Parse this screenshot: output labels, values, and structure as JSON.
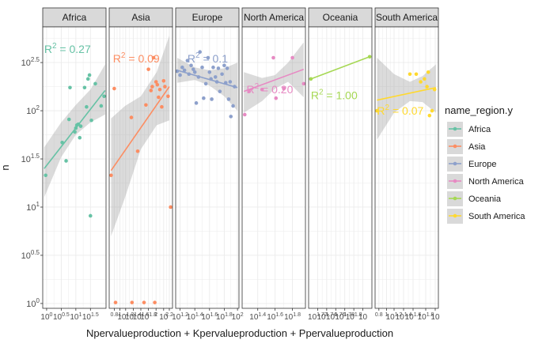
{
  "chart_data": {
    "type": "scatter",
    "subtype": "faceted scatter with linear fit and confidence band",
    "xlabel": "Npervalueproduction + Kpervalueproduction + Ppervalueproduction",
    "ylabel": "n",
    "x_scale": "log10",
    "y_scale": "log10",
    "y_ticks": [
      {
        "label": "10^0",
        "base": "10",
        "exp": "0",
        "value": 1
      },
      {
        "label": "10^0.5",
        "base": "10",
        "exp": "0.5",
        "value": 3.162
      },
      {
        "label": "10^1",
        "base": "10",
        "exp": "1",
        "value": 10
      },
      {
        "label": "10^1.5",
        "base": "10",
        "exp": "1.5",
        "value": 31.62
      },
      {
        "label": "10^2",
        "base": "10",
        "exp": "2",
        "value": 100
      },
      {
        "label": "10^2.5",
        "base": "10",
        "exp": "2.5",
        "value": 316.2
      }
    ],
    "ylim_log10": [
      -0.05,
      2.87
    ],
    "legend": {
      "title": "name_region.y",
      "position": "right",
      "entries": [
        {
          "name": "Africa",
          "color": "#66c2a5"
        },
        {
          "name": "Asia",
          "color": "#fc8d62"
        },
        {
          "name": "Europe",
          "color": "#8da0cb"
        },
        {
          "name": "North America",
          "color": "#e78ac3"
        },
        {
          "name": "Oceania",
          "color": "#a6d854"
        },
        {
          "name": "South America",
          "color": "#ffd92f"
        }
      ]
    },
    "facets": [
      {
        "name": "Africa",
        "color": "#66c2a5",
        "xlim_log10": [
          0.32,
          1.62
        ],
        "x_ticks": [
          {
            "base": "10",
            "exp": "0",
            "pos": 0.4
          },
          {
            "base": "10",
            "exp": "0.5",
            "pos": 0.7
          },
          {
            "base": "10",
            "exp": "1",
            "pos": 1.0
          },
          {
            "base": "10",
            "exp": "1.5",
            "pos": 1.3
          }
        ],
        "r2_base": "R",
        "r2_exp": "2",
        "r2_value": " = 0.27",
        "r2_pos": [
          0.35,
          2.6
        ],
        "fit": {
          "x0": 0.35,
          "y0": 1.4,
          "x1": 1.6,
          "y1": 2.21
        },
        "band": {
          "x": [
            0.35,
            0.7,
            1.0,
            1.3,
            1.6
          ],
          "upper": [
            1.62,
            1.88,
            2.06,
            2.22,
            2.48
          ],
          "lower": [
            1.1,
            1.52,
            1.75,
            1.88,
            1.96
          ]
        },
        "points": [
          [
            0.38,
            1.33
          ],
          [
            0.72,
            1.67
          ],
          [
            0.8,
            1.48
          ],
          [
            0.86,
            1.91
          ],
          [
            0.88,
            2.24
          ],
          [
            0.98,
            1.78
          ],
          [
            1.0,
            1.82
          ],
          [
            1.02,
            1.85
          ],
          [
            1.05,
            1.86
          ],
          [
            1.08,
            1.72
          ],
          [
            1.1,
            1.84
          ],
          [
            1.18,
            2.24
          ],
          [
            1.22,
            2.04
          ],
          [
            1.25,
            2.33
          ],
          [
            1.28,
            2.37
          ],
          [
            1.3,
            0.91
          ],
          [
            1.32,
            1.9
          ],
          [
            1.4,
            2.28
          ],
          [
            1.52,
            2.05
          ],
          [
            1.58,
            2.15
          ]
        ]
      },
      {
        "name": "Asia",
        "color": "#fc8d62",
        "xlim_log10": [
          0.0,
          1.0
        ],
        "x_ticks": [
          {
            "base": "",
            "exp": "0.8",
            "pos": 0.08
          },
          {
            "base": "",
            "exp": "1",
            "pos": 0.17
          },
          {
            "base": "10",
            "exp": "1.2",
            "pos": 0.26
          },
          {
            "base": "10",
            "exp": "1.4",
            "pos": 0.38
          },
          {
            "base": "10",
            "exp": "1.6",
            "pos": 0.5
          },
          {
            "base": "10",
            "exp": "1.8",
            "pos": 0.62
          },
          {
            "base": "",
            "exp": "2",
            "pos": 0.74
          },
          {
            "base": "10",
            "exp": "",
            "pos": 0.86
          },
          {
            "base": "",
            "exp": "2.2",
            "pos": 0.95
          }
        ],
        "r2_base": "R",
        "r2_exp": "2",
        "r2_value": " = 0.09",
        "r2_pos": [
          0.06,
          2.5
        ],
        "fit": {
          "x0": 0.03,
          "y0": 1.38,
          "x1": 0.95,
          "y1": 2.25
        },
        "band": {
          "x": [
            0.03,
            0.25,
            0.5,
            0.75,
            0.95
          ],
          "upper": [
            1.92,
            2.05,
            2.15,
            2.4,
            2.78
          ],
          "lower": [
            0.7,
            1.1,
            1.6,
            1.85,
            1.9
          ]
        },
        "points": [
          [
            0.03,
            1.33
          ],
          [
            0.08,
            2.23
          ],
          [
            0.1,
            0.01
          ],
          [
            0.35,
            1.93
          ],
          [
            0.36,
            0.01
          ],
          [
            0.45,
            1.58
          ],
          [
            0.55,
            0.01
          ],
          [
            0.58,
            2.06
          ],
          [
            0.62,
            2.43
          ],
          [
            0.66,
            2.21
          ],
          [
            0.68,
            2.25
          ],
          [
            0.7,
            2.55
          ],
          [
            0.72,
            0.01
          ],
          [
            0.74,
            2.3
          ],
          [
            0.76,
            2.27
          ],
          [
            0.78,
            2.14
          ],
          [
            0.8,
            2.22
          ],
          [
            0.83,
            2.04
          ],
          [
            0.86,
            2.31
          ],
          [
            0.88,
            2.25
          ],
          [
            0.93,
            2.15
          ],
          [
            0.97,
            1.0
          ]
        ]
      },
      {
        "name": "Europe",
        "color": "#8da0cb",
        "xlim_log10": [
          1.14,
          2.0
        ],
        "x_ticks": [
          {
            "base": "10",
            "exp": "1.2",
            "pos": 1.2
          },
          {
            "base": "10",
            "exp": "1.4",
            "pos": 1.4
          },
          {
            "base": "10",
            "exp": "1.6",
            "pos": 1.6
          },
          {
            "base": "10",
            "exp": "1.8",
            "pos": 1.8
          },
          {
            "base": "10",
            "exp": "2",
            "pos": 1.98
          }
        ],
        "r2_base": "R",
        "r2_exp": "2",
        "r2_value": " = 0.1",
        "r2_pos": [
          1.3,
          2.5
        ],
        "fit": {
          "x0": 1.16,
          "y0": 2.42,
          "x1": 1.98,
          "y1": 2.24
        },
        "band": {
          "x": [
            1.16,
            1.4,
            1.6,
            1.8,
            1.98
          ],
          "upper": [
            2.55,
            2.45,
            2.42,
            2.44,
            2.5
          ],
          "lower": [
            2.29,
            2.32,
            2.26,
            2.15,
            2.0
          ]
        },
        "points": [
          [
            1.16,
            2.41
          ],
          [
            1.2,
            2.37
          ],
          [
            1.23,
            2.45
          ],
          [
            1.26,
            2.42
          ],
          [
            1.3,
            2.52
          ],
          [
            1.32,
            2.38
          ],
          [
            1.35,
            2.47
          ],
          [
            1.38,
            2.43
          ],
          [
            1.4,
            2.4
          ],
          [
            1.42,
            2.08
          ],
          [
            1.45,
            2.35
          ],
          [
            1.47,
            2.61
          ],
          [
            1.5,
            2.45
          ],
          [
            1.52,
            2.13
          ],
          [
            1.55,
            2.28
          ],
          [
            1.58,
            2.55
          ],
          [
            1.6,
            2.4
          ],
          [
            1.62,
            2.33
          ],
          [
            1.63,
            2.12
          ],
          [
            1.65,
            2.45
          ],
          [
            1.68,
            2.35
          ],
          [
            1.7,
            2.3
          ],
          [
            1.72,
            2.44
          ],
          [
            1.74,
            2.2
          ],
          [
            1.77,
            2.38
          ],
          [
            1.8,
            2.47
          ],
          [
            1.82,
            2.29
          ],
          [
            1.84,
            2.44
          ],
          [
            1.86,
            2.12
          ],
          [
            1.88,
            2.3
          ],
          [
            1.89,
            1.94
          ],
          [
            1.92,
            2.05
          ],
          [
            1.94,
            2.25
          ]
        ]
      },
      {
        "name": "North America",
        "color": "#e78ac3",
        "xlim_log10": [
          1.22,
          1.95
        ],
        "x_ticks": [
          {
            "base": "10",
            "exp": "1.4",
            "pos": 1.4
          },
          {
            "base": "10",
            "exp": "1.6",
            "pos": 1.6
          },
          {
            "base": "10",
            "exp": "1.8",
            "pos": 1.8
          }
        ],
        "r2_base": "R",
        "r2_exp": "2",
        "r2_value": " = 0.20",
        "r2_pos": [
          1.27,
          2.18
        ],
        "fit": {
          "x0": 1.24,
          "y0": 2.2,
          "x1": 1.93,
          "y1": 2.43
        },
        "band": {
          "x": [
            1.24,
            1.45,
            1.6,
            1.75,
            1.93
          ],
          "upper": [
            2.4,
            2.34,
            2.37,
            2.5,
            2.71
          ],
          "lower": [
            1.98,
            2.1,
            2.23,
            2.3,
            2.14
          ]
        },
        "points": [
          [
            1.25,
            1.96
          ],
          [
            1.3,
            2.2
          ],
          [
            1.45,
            2.22
          ],
          [
            1.58,
            2.55
          ],
          [
            1.61,
            2.13
          ],
          [
            1.7,
            2.23
          ],
          [
            1.8,
            2.55
          ],
          [
            1.93,
            2.28
          ]
        ]
      },
      {
        "name": "Oceania",
        "color": "#a6d854",
        "xlim_log10": [
          1.68,
          1.82
        ],
        "x_ticks": [
          {
            "base": "10",
            "exp": "1.72",
            "pos": 1.7
          },
          {
            "base": "10",
            "exp": "1.74",
            "pos": 1.72
          },
          {
            "base": "10",
            "exp": "1.76",
            "pos": 1.74
          },
          {
            "base": "10",
            "exp": "1.78",
            "pos": 1.76
          },
          {
            "base": "10",
            "exp": "1.8",
            "pos": 1.78
          },
          {
            "base": "10",
            "exp": "",
            "pos": 1.8
          }
        ],
        "r2_base": "R",
        "r2_exp": "2",
        "r2_value": " = 1.00",
        "r2_pos": [
          1.685,
          2.12
        ],
        "fit": {
          "x0": 1.685,
          "y0": 2.33,
          "x1": 1.815,
          "y1": 2.56
        },
        "band": {
          "x": [
            1.685,
            1.815
          ],
          "upper": [
            2.33,
            2.56
          ],
          "lower": [
            2.33,
            2.56
          ]
        },
        "points": [
          [
            1.685,
            2.33
          ],
          [
            1.815,
            2.56
          ]
        ]
      },
      {
        "name": "South America",
        "color": "#ffd92f",
        "xlim_log10": [
          0.9,
          1.9
        ],
        "x_ticks": [
          {
            "base": "",
            "exp": "0.8",
            "pos": 0.96
          },
          {
            "base": "",
            "exp": "1",
            "pos": 1.08
          },
          {
            "base": "10",
            "exp": "1.2",
            "pos": 1.2
          },
          {
            "base": "10",
            "exp": "1.4",
            "pos": 1.35
          },
          {
            "base": "10",
            "exp": "1.6",
            "pos": 1.5
          },
          {
            "base": "10",
            "exp": "1.8",
            "pos": 1.7
          },
          {
            "base": "10",
            "exp": "",
            "pos": 1.85
          }
        ],
        "r2_base": "R",
        "r2_exp": "2",
        "r2_value": " = 0.07",
        "r2_pos": [
          0.93,
          1.96
        ],
        "fit": {
          "x0": 0.93,
          "y0": 2.11,
          "x1": 1.86,
          "y1": 2.24
        },
        "band": {
          "x": [
            0.93,
            1.2,
            1.45,
            1.65,
            1.86
          ],
          "upper": [
            2.55,
            2.38,
            2.3,
            2.36,
            2.48
          ],
          "lower": [
            1.7,
            1.98,
            2.1,
            2.09,
            1.98
          ]
        },
        "points": [
          [
            0.93,
            2.0
          ],
          [
            1.45,
            2.38
          ],
          [
            1.55,
            2.38
          ],
          [
            1.62,
            2.3
          ],
          [
            1.68,
            2.33
          ],
          [
            1.72,
            2.25
          ],
          [
            1.74,
            2.4
          ],
          [
            1.76,
            1.95
          ],
          [
            1.8,
            2.0
          ],
          [
            1.84,
            2.22
          ]
        ]
      }
    ]
  }
}
